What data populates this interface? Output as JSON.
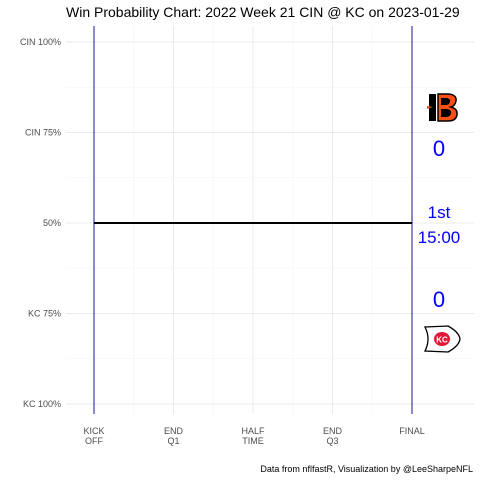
{
  "chart_data": {
    "type": "line",
    "title": "Win Probability Chart: 2022 Week 21 CIN @ KC on 2023-01-29",
    "xlabel": "",
    "ylabel": "",
    "x_ticks": [
      {
        "value": 0,
        "label": [
          "KICK",
          "OFF"
        ]
      },
      {
        "value": 15,
        "label": [
          "END",
          "Q1"
        ]
      },
      {
        "value": 30,
        "label": [
          "HALF",
          "TIME"
        ]
      },
      {
        "value": 45,
        "label": [
          "END",
          "Q3"
        ]
      },
      {
        "value": 60,
        "label": [
          "FINAL"
        ]
      }
    ],
    "y_ticks": [
      {
        "value": 1.0,
        "label": "CIN 100%"
      },
      {
        "value": 0.75,
        "label": "CIN 75%"
      },
      {
        "value": 0.5,
        "label": "50%"
      },
      {
        "value": 0.25,
        "label": "KC 75%"
      },
      {
        "value": 0.0,
        "label": "KC 100%"
      }
    ],
    "xlim": [
      0,
      60
    ],
    "ylim": [
      0,
      1
    ],
    "grid": true,
    "series": [
      {
        "x": [
          0,
          60
        ],
        "y": [
          0.5,
          0.5
        ],
        "color": "#000000"
      }
    ],
    "reference_lines": {
      "x": [
        0,
        60
      ],
      "color": "#00008b"
    },
    "teams": {
      "away": {
        "abbr": "CIN",
        "score": "0",
        "logo_icon": "bengals-logo-icon",
        "color": "#fb4f14"
      },
      "home": {
        "abbr": "KC",
        "score": "0",
        "logo_icon": "chiefs-logo-icon",
        "color": "#e31837"
      }
    },
    "game_clock": {
      "quarter": "1st",
      "time": "15:00"
    },
    "caption": "Data from nflfastR, Visualization by @LeeSharpeNFL"
  }
}
